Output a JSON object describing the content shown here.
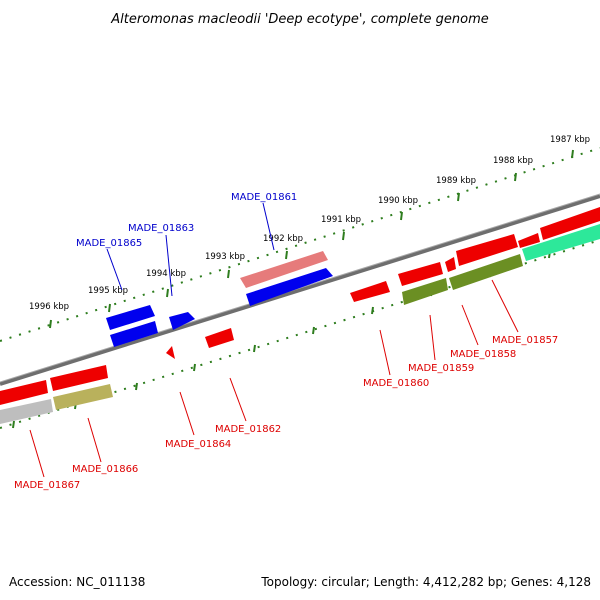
{
  "title": "Alteromonas macleodii 'Deep ecotype', complete genome",
  "accession": "Accession: NC_011138",
  "summary": "Topology: circular; Length: 4,412,282 bp; Genes: 4,128",
  "colors": {
    "backbone": "#7a7a7a",
    "tick": "#2e7d1e",
    "forward_gene": "#0000ee",
    "reverse_gene": "#ee0000",
    "label_forward": "#0000cc",
    "label_reverse": "#dd0000"
  },
  "kbp_labels": [
    "1987 kbp",
    "1988 kbp",
    "1989 kbp",
    "1990 kbp",
    "1991 kbp",
    "1992 kbp",
    "1993 kbp",
    "1994 kbp",
    "1995 kbp",
    "1996 kbp"
  ],
  "forward_gene_labels": [
    "MADE_01861",
    "MADE_01863",
    "MADE_01865"
  ],
  "reverse_gene_labels": [
    "MADE_01857",
    "MADE_01858",
    "MADE_01859",
    "MADE_01860",
    "MADE_01862",
    "MADE_01864",
    "MADE_01866",
    "MADE_01867"
  ]
}
